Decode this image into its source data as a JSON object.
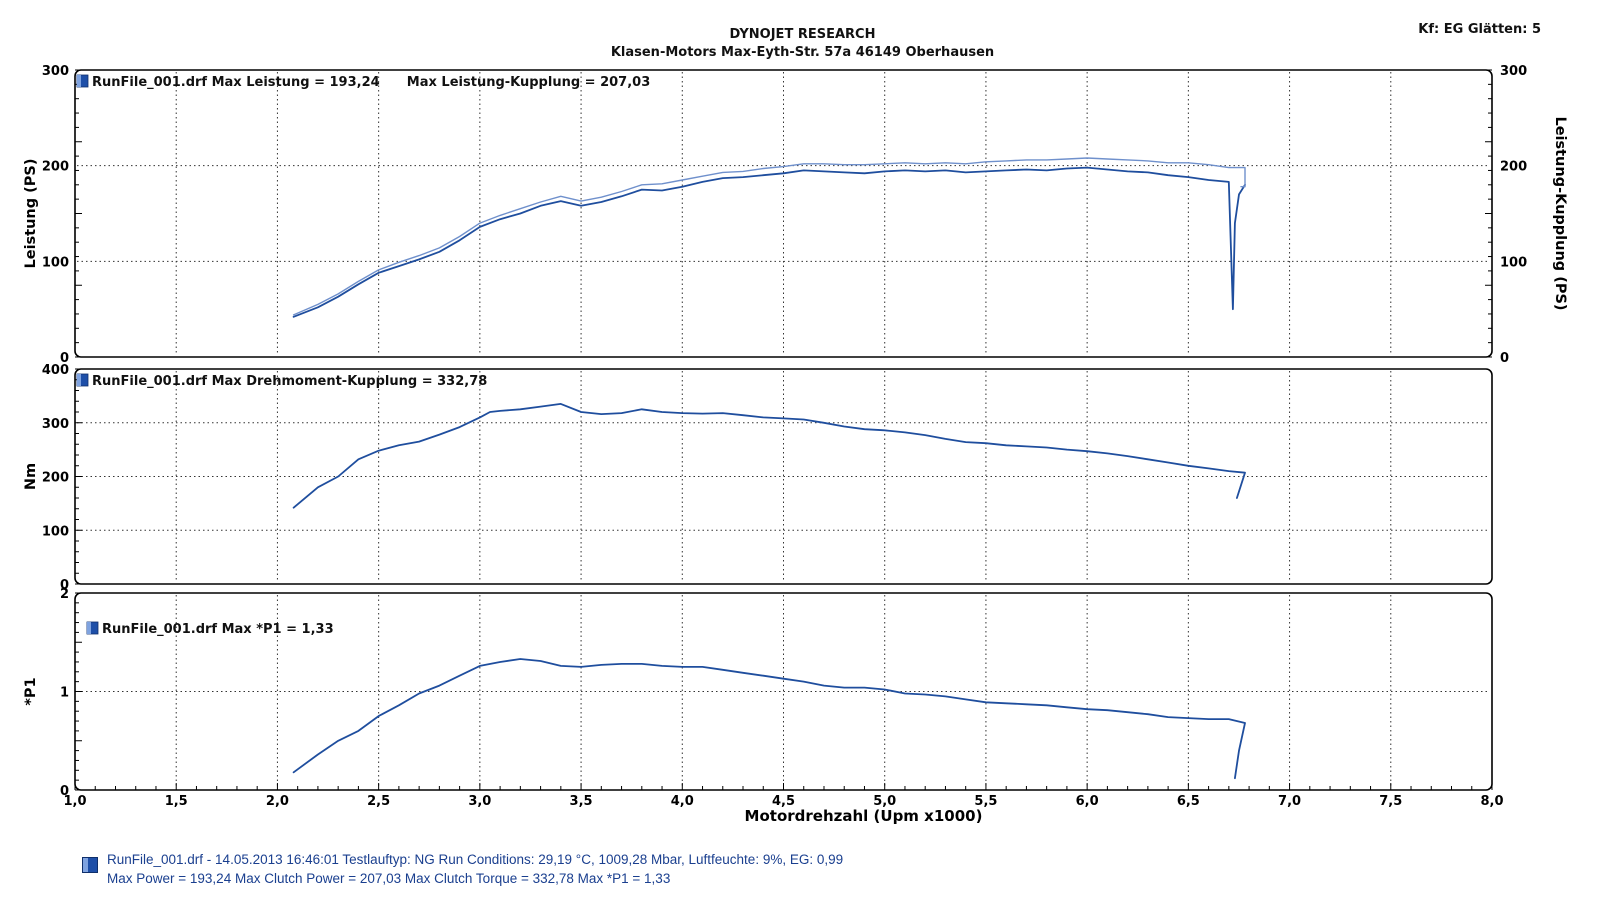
{
  "header": {
    "title": "DYNOJET RESEARCH",
    "subtitle": "Klasen-Motors   Max-Eyth-Str. 57a   46149 Oberhausen",
    "settings": "Kf: EG  Glätten: 5"
  },
  "footer": {
    "line1": "RunFile_001.drf - 14.05.2013 16:46:01  Testlauftyp: NG  Run Conditions: 29,19 °C, 1009,28 Mbar,  Luftfeuchte: 9%, EG: 0,99",
    "line2": "Max Power = 193,24  Max Clutch Power = 207,03  Max Clutch Torque = 332,78  Max *P1 = 1,33"
  },
  "colors": {
    "curve": "#1f4e9e",
    "curve_light": "#6f90cc",
    "frame": "#000000",
    "grid": "#333333"
  },
  "chart_data": [
    {
      "type": "line",
      "xlabel": "",
      "ylabel": "Leistung (PS)",
      "ylabel_right": "Leistung-Kupplung (PS)",
      "xlim": [
        1.0,
        8.0
      ],
      "ylim": [
        0,
        300
      ],
      "yticks": [
        0,
        100,
        200,
        300
      ],
      "yticks_right": [
        0,
        100,
        200,
        300
      ],
      "legend": "RunFile_001.drf Max Leistung = 193,24      Max Leistung-Kupplung = 207,03",
      "series": [
        {
          "x": [
            2.08,
            2.2,
            2.3,
            2.4,
            2.5,
            2.6,
            2.7,
            2.8,
            2.9,
            3.0,
            3.1,
            3.2,
            3.3,
            3.4,
            3.5,
            3.6,
            3.7,
            3.8,
            3.9,
            4.0,
            4.1,
            4.2,
            4.3,
            4.4,
            4.5,
            4.6,
            4.7,
            4.8,
            4.9,
            5.0,
            5.1,
            5.2,
            5.3,
            5.4,
            5.5,
            5.6,
            5.7,
            5.8,
            5.9,
            6.0,
            6.1,
            6.2,
            6.3,
            6.4,
            6.5,
            6.6,
            6.7,
            6.72,
            6.73,
            6.75,
            6.78
          ],
          "values": [
            42,
            52,
            63,
            76,
            88,
            95,
            102,
            110,
            122,
            136,
            144,
            150,
            158,
            163,
            158,
            162,
            168,
            175,
            174,
            178,
            183,
            187,
            188,
            190,
            192,
            195,
            194,
            193,
            192,
            194,
            195,
            194,
            195,
            193,
            194,
            195,
            196,
            195,
            197,
            198,
            196,
            194,
            193,
            190,
            188,
            185,
            183,
            50,
            140,
            170,
            180
          ]
        },
        {
          "x": [
            2.08,
            2.2,
            2.3,
            2.4,
            2.5,
            2.6,
            2.7,
            2.8,
            2.9,
            3.0,
            3.1,
            3.2,
            3.3,
            3.4,
            3.5,
            3.6,
            3.7,
            3.8,
            3.9,
            4.0,
            4.1,
            4.2,
            4.3,
            4.4,
            4.5,
            4.6,
            4.7,
            4.8,
            4.9,
            5.0,
            5.1,
            5.2,
            5.3,
            5.4,
            5.5,
            5.6,
            5.7,
            5.8,
            5.9,
            6.0,
            6.1,
            6.2,
            6.3,
            6.4,
            6.5,
            6.6,
            6.7,
            6.78,
            6.78,
            6.76
          ],
          "values": [
            44,
            55,
            66,
            79,
            91,
            99,
            106,
            114,
            126,
            140,
            148,
            155,
            162,
            168,
            163,
            167,
            173,
            180,
            181,
            185,
            189,
            193,
            194,
            197,
            199,
            202,
            202,
            201,
            201,
            202,
            203,
            202,
            203,
            202,
            204,
            205,
            206,
            206,
            207,
            208,
            207,
            206,
            205,
            203,
            203,
            201,
            198,
            198,
            178,
            178
          ]
        }
      ]
    },
    {
      "type": "line",
      "xlabel": "",
      "ylabel": "Nm",
      "xlim": [
        1.0,
        8.0
      ],
      "ylim": [
        0,
        400
      ],
      "yticks": [
        0,
        100,
        200,
        300,
        400
      ],
      "legend": "RunFile_001.drf Max Drehmoment-Kupplung = 332,78",
      "series": [
        {
          "x": [
            2.08,
            2.2,
            2.3,
            2.4,
            2.5,
            2.6,
            2.7,
            2.8,
            2.9,
            3.0,
            3.05,
            3.1,
            3.2,
            3.3,
            3.4,
            3.5,
            3.6,
            3.7,
            3.8,
            3.9,
            4.0,
            4.1,
            4.2,
            4.3,
            4.4,
            4.5,
            4.6,
            4.7,
            4.8,
            4.9,
            5.0,
            5.1,
            5.2,
            5.3,
            5.4,
            5.5,
            5.6,
            5.7,
            5.8,
            5.9,
            6.0,
            6.1,
            6.2,
            6.3,
            6.4,
            6.5,
            6.6,
            6.7,
            6.78,
            6.74
          ],
          "values": [
            142,
            180,
            200,
            232,
            248,
            258,
            265,
            278,
            292,
            310,
            320,
            322,
            325,
            330,
            335,
            320,
            316,
            318,
            325,
            320,
            318,
            317,
            318,
            314,
            310,
            308,
            306,
            300,
            293,
            288,
            286,
            282,
            277,
            270,
            264,
            262,
            258,
            256,
            254,
            250,
            247,
            243,
            238,
            232,
            226,
            220,
            215,
            210,
            207,
            160
          ]
        }
      ]
    },
    {
      "type": "line",
      "xlabel": "Motordrehzahl (Upm x1000)",
      "ylabel": "*P1",
      "xlim": [
        1.0,
        8.0
      ],
      "ylim": [
        0,
        2
      ],
      "yticks": [
        0,
        1,
        2
      ],
      "xticks": [
        "1,0",
        "1,5",
        "2,0",
        "2,5",
        "3,0",
        "3,5",
        "4,0",
        "4,5",
        "5,0",
        "5,5",
        "6,0",
        "6,5",
        "7,0",
        "7,5",
        "8,0"
      ],
      "legend": "RunFile_001.drf Max *P1 = 1,33",
      "series": [
        {
          "x": [
            2.08,
            2.2,
            2.3,
            2.4,
            2.5,
            2.6,
            2.7,
            2.8,
            2.9,
            3.0,
            3.1,
            3.2,
            3.3,
            3.4,
            3.5,
            3.6,
            3.7,
            3.8,
            3.9,
            4.0,
            4.1,
            4.2,
            4.3,
            4.4,
            4.5,
            4.6,
            4.7,
            4.8,
            4.9,
            5.0,
            5.1,
            5.2,
            5.3,
            5.4,
            5.5,
            5.6,
            5.7,
            5.8,
            5.9,
            6.0,
            6.1,
            6.2,
            6.3,
            6.4,
            6.5,
            6.6,
            6.7,
            6.78,
            6.75,
            6.73
          ],
          "values": [
            0.18,
            0.36,
            0.5,
            0.6,
            0.75,
            0.86,
            0.98,
            1.06,
            1.16,
            1.26,
            1.3,
            1.33,
            1.31,
            1.26,
            1.25,
            1.27,
            1.28,
            1.28,
            1.26,
            1.25,
            1.25,
            1.22,
            1.19,
            1.16,
            1.13,
            1.1,
            1.06,
            1.04,
            1.04,
            1.02,
            0.98,
            0.97,
            0.95,
            0.92,
            0.89,
            0.88,
            0.87,
            0.86,
            0.84,
            0.82,
            0.81,
            0.79,
            0.77,
            0.74,
            0.73,
            0.72,
            0.72,
            0.68,
            0.4,
            0.12
          ]
        }
      ]
    }
  ]
}
